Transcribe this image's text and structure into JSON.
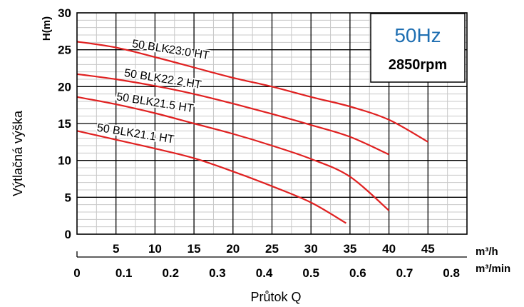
{
  "chart_data": {
    "type": "line",
    "ylabel_short": "H(m)",
    "ylabel": "Výtlačná výška",
    "xlabel": "Průtok Q",
    "x_unit_primary": "m³/h",
    "x_unit_secondary": "m³/min",
    "xlim": [
      0,
      50
    ],
    "ylim": [
      0,
      30
    ],
    "x_ticks_m3h": [
      "5",
      "10",
      "15",
      "20",
      "25",
      "30",
      "35",
      "40",
      "45"
    ],
    "x_ticks_m3min": [
      "0",
      "0.1",
      "0.2",
      "0.3",
      "0.4",
      "0.5",
      "0.6",
      "0.7",
      "0.8"
    ],
    "y_ticks": [
      "0",
      "5",
      "10",
      "15",
      "20",
      "25",
      "30"
    ],
    "grid": true,
    "info_box": {
      "frequency": "50Hz",
      "rpm": "2850rpm"
    },
    "series": [
      {
        "name": "50 BLK23.0 HT",
        "color": "#e02020",
        "points": [
          [
            0,
            26.1
          ],
          [
            5,
            25.3
          ],
          [
            10,
            24.0
          ],
          [
            15,
            22.6
          ],
          [
            20,
            21.2
          ],
          [
            25,
            20.0
          ],
          [
            30,
            18.6
          ],
          [
            35,
            17.3
          ],
          [
            40,
            15.5
          ],
          [
            45,
            12.5
          ]
        ]
      },
      {
        "name": "50 BLK22.2 HT",
        "color": "#e02020",
        "points": [
          [
            0,
            21.7
          ],
          [
            5,
            21.0
          ],
          [
            10,
            20.1
          ],
          [
            15,
            19.0
          ],
          [
            20,
            17.7
          ],
          [
            25,
            16.3
          ],
          [
            30,
            14.8
          ],
          [
            35,
            13.2
          ],
          [
            40,
            10.8
          ]
        ]
      },
      {
        "name": "50 BLK21.5 HT",
        "color": "#e02020",
        "points": [
          [
            0,
            18.6
          ],
          [
            5,
            17.6
          ],
          [
            10,
            16.4
          ],
          [
            15,
            15.0
          ],
          [
            20,
            13.6
          ],
          [
            25,
            12.0
          ],
          [
            30,
            10.2
          ],
          [
            35,
            7.8
          ],
          [
            40,
            3.2
          ]
        ]
      },
      {
        "name": "50 BLK21.1 HT",
        "color": "#e02020",
        "points": [
          [
            0,
            14.0
          ],
          [
            5,
            12.8
          ],
          [
            10,
            11.6
          ],
          [
            15,
            10.3
          ],
          [
            20,
            8.5
          ],
          [
            25,
            6.5
          ],
          [
            30,
            4.3
          ],
          [
            34.5,
            1.5
          ]
        ]
      }
    ]
  }
}
